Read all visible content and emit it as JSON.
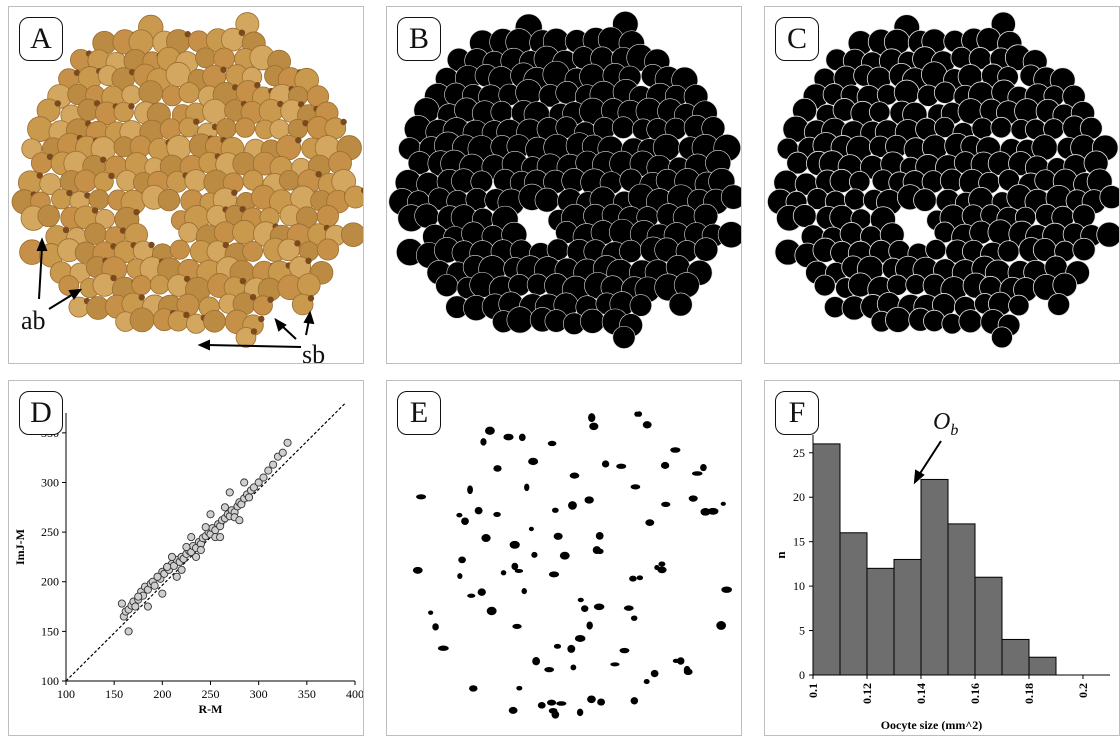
{
  "panels": {
    "a": {
      "label": "A",
      "annot_ab": "ab",
      "annot_sb": "sb"
    },
    "b": {
      "label": "B"
    },
    "c": {
      "label": "C"
    },
    "d": {
      "label": "D"
    },
    "e": {
      "label": "E"
    },
    "f": {
      "label": "F",
      "annotation_main": "O",
      "annotation_sub": "b"
    }
  },
  "colors": {
    "oocyte": "#c89a4e",
    "oocyte_dark": "#7a4a1e",
    "mask": "#000000",
    "bar": "#6e6e6e",
    "point": "#cfcfcf"
  },
  "chart_data": [
    {
      "type": "scatter",
      "panel": "D",
      "xlabel": "R-M",
      "ylabel": "ImJ-M",
      "xlim": [
        100,
        400
      ],
      "ylim": [
        100,
        370
      ],
      "xticks": [
        "100",
        "150",
        "200",
        "250",
        "300",
        "350",
        "400"
      ],
      "yticks": [
        "100",
        "150",
        "200",
        "250",
        "300",
        "350"
      ],
      "line": {
        "style": "dashed",
        "x": [
          100,
          390
        ],
        "y": [
          100,
          390
        ]
      },
      "series": [
        {
          "x": [
            158,
            160,
            162,
            165,
            168,
            170,
            172,
            175,
            178,
            180,
            182,
            185,
            188,
            190,
            192,
            195,
            198,
            200,
            202,
            205,
            207,
            210,
            212,
            215,
            218,
            220,
            222,
            225,
            228,
            230,
            232,
            235,
            238,
            240,
            242,
            245,
            248,
            250,
            252,
            255,
            258,
            260,
            262,
            265,
            268,
            270,
            272,
            275,
            278,
            280,
            282,
            285,
            288,
            290,
            292,
            295,
            300,
            305,
            310,
            315,
            320,
            325,
            330,
            165,
            175,
            185,
            195,
            205,
            215,
            225,
            235,
            245,
            255,
            265,
            275,
            285,
            200,
            210,
            220,
            230,
            240,
            250,
            260,
            270,
            280
          ],
          "y": [
            178,
            165,
            170,
            172,
            176,
            180,
            175,
            182,
            190,
            186,
            195,
            192,
            198,
            200,
            196,
            205,
            203,
            210,
            208,
            214,
            212,
            218,
            216,
            222,
            220,
            225,
            223,
            228,
            231,
            230,
            236,
            234,
            240,
            238,
            244,
            246,
            250,
            248,
            254,
            252,
            258,
            256,
            262,
            264,
            268,
            266,
            272,
            270,
            276,
            280,
            278,
            284,
            288,
            285,
            292,
            295,
            300,
            305,
            312,
            318,
            326,
            330,
            340,
            150,
            185,
            175,
            205,
            215,
            205,
            235,
            225,
            255,
            245,
            275,
            265,
            300,
            188,
            225,
            212,
            245,
            232,
            268,
            245,
            290,
            262
          ]
        }
      ]
    },
    {
      "type": "bar",
      "panel": "F",
      "xlabel": "Oocyte size (mm^2)",
      "ylabel": "n",
      "ylim": [
        0,
        27
      ],
      "yticks": [
        "0",
        "5",
        "10",
        "15",
        "20",
        "25"
      ],
      "xticks": [
        "0.1",
        "0.12",
        "0.14",
        "0.16",
        "0.18",
        "0.2"
      ],
      "bin_starts": [
        0.1,
        0.11,
        0.12,
        0.13,
        0.14,
        0.15,
        0.16,
        0.17,
        0.18
      ],
      "bin_width": 0.01,
      "values": [
        26,
        16,
        12,
        13,
        22,
        17,
        11,
        4,
        2
      ],
      "xlim": [
        0.1,
        0.21
      ]
    }
  ]
}
